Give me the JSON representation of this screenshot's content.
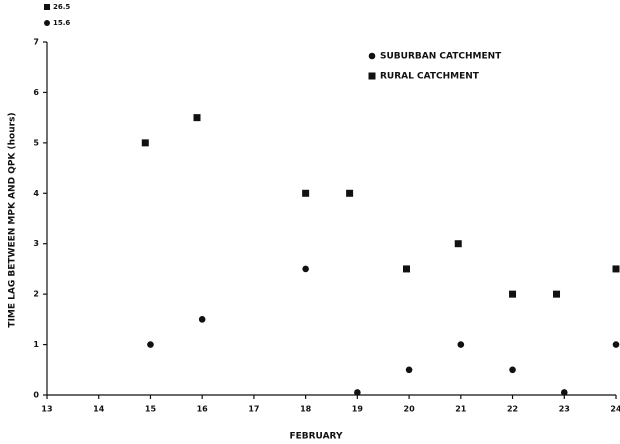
{
  "chart_data": {
    "type": "scatter",
    "x_label": "FEBRUARY",
    "y_label": "TIME LAG BETWEEN MPK AND QPK (hours)",
    "annotations": [
      "26.5",
      "15.6"
    ],
    "xlim": [
      13,
      24
    ],
    "xticks": [
      13,
      14,
      15,
      16,
      17,
      18,
      19,
      20,
      21,
      22,
      23,
      24
    ],
    "ylim": [
      0,
      7
    ],
    "yticks": [
      0,
      1,
      2,
      3,
      4,
      5,
      6,
      7
    ],
    "grid": false,
    "legend": "upper right",
    "series": [
      {
        "name": "SUBURBAN CATCHMENT",
        "color": "#111111",
        "marker": "circle",
        "x": [
          15,
          16,
          18,
          19,
          20,
          21,
          22,
          23,
          24
        ],
        "values": [
          1,
          1.5,
          2.5,
          0.05,
          0.5,
          1,
          0.5,
          0.05,
          1
        ]
      },
      {
        "name": "RURAL CATCHMENT",
        "color": "#111111",
        "marker": "square",
        "x": [
          14.9,
          15.9,
          18,
          18.85,
          19.95,
          20.95,
          22,
          22.85,
          24
        ],
        "values": [
          5,
          5.5,
          4,
          4,
          2.5,
          3,
          2,
          2,
          2.5
        ]
      }
    ]
  }
}
